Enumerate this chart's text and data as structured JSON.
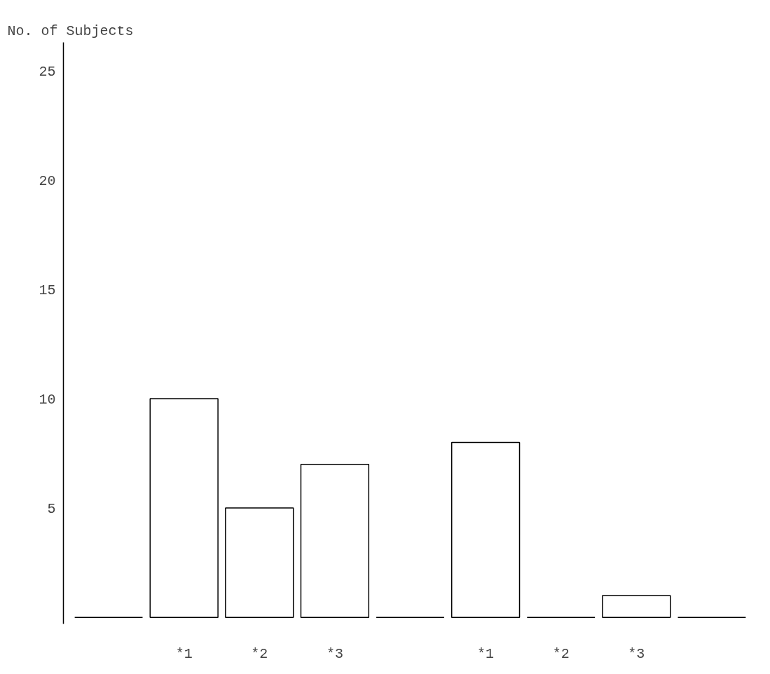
{
  "chart_data": {
    "type": "bar",
    "ylabel": "No. of Subjects",
    "categories": [
      null,
      "*1",
      "*2",
      "*3",
      null,
      "*1",
      "*2",
      "*3",
      null
    ],
    "values": [
      0,
      10,
      5,
      7,
      0,
      8,
      0,
      1,
      0
    ],
    "color": "#000000",
    "ylim": [
      -0.3,
      26.3
    ],
    "yticks": [
      5,
      10,
      15,
      20,
      25
    ],
    "grid": false
  }
}
